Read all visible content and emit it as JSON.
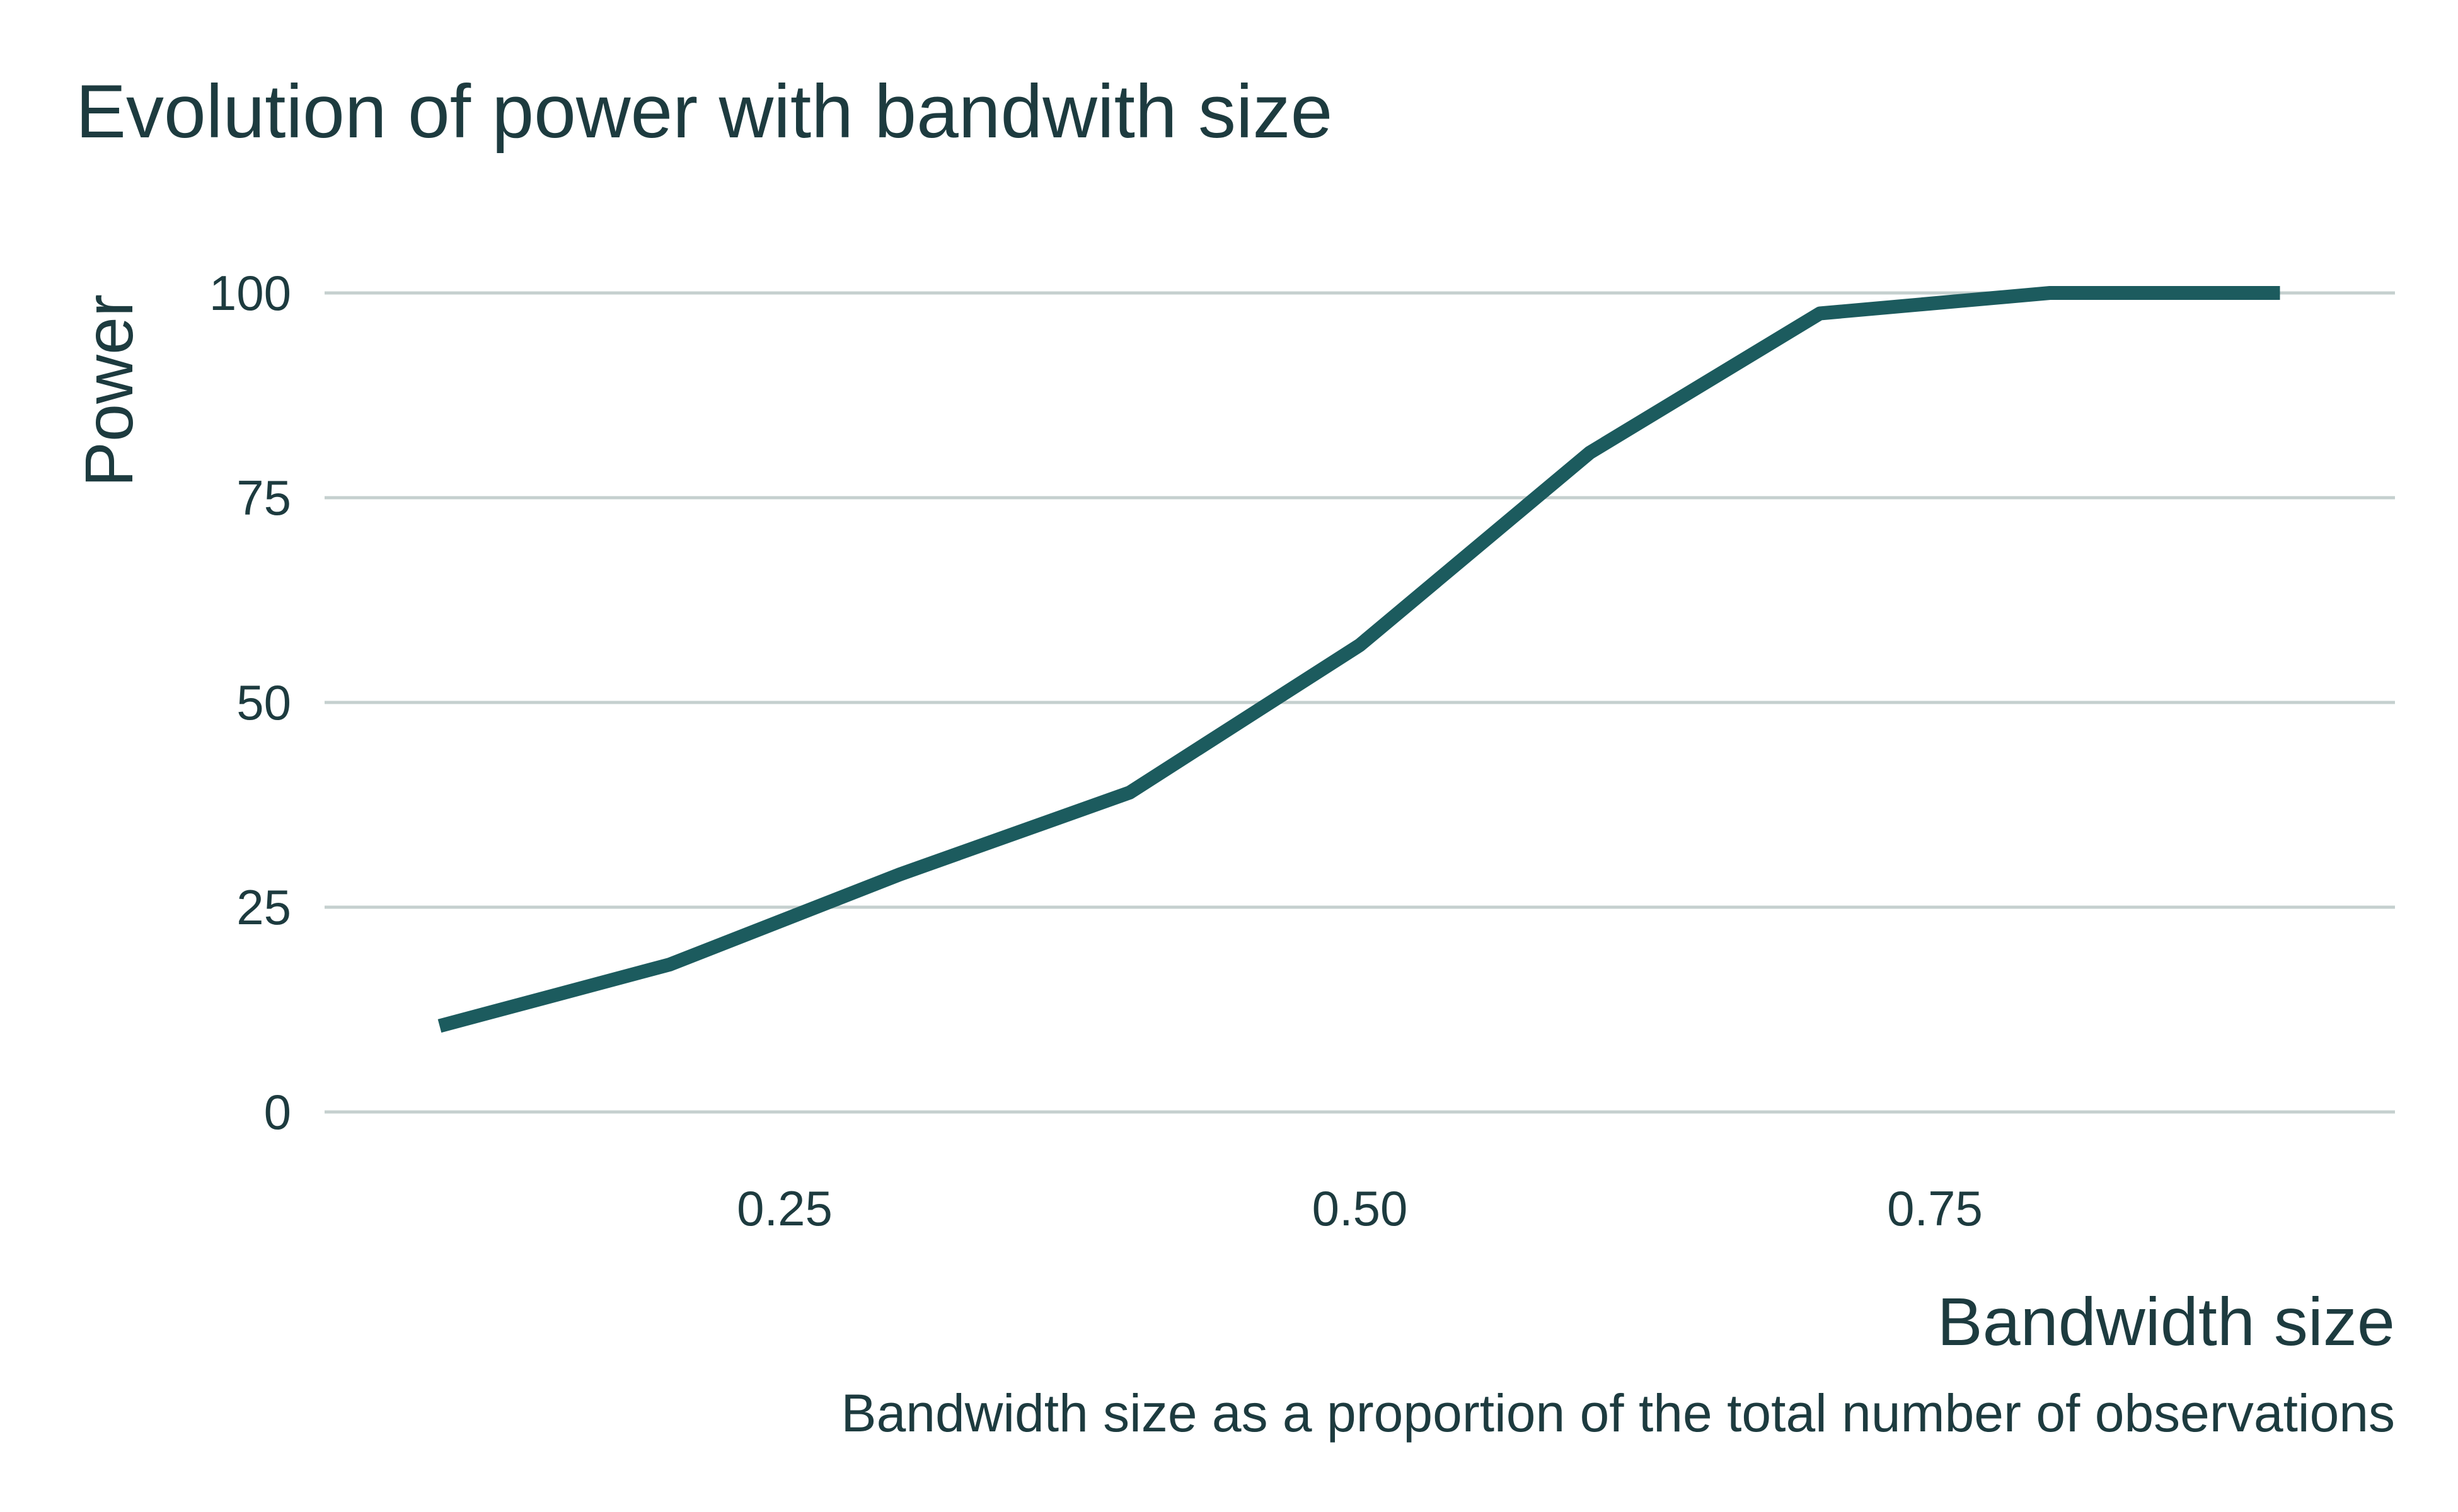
{
  "chart_data": {
    "type": "line",
    "title": "Evolution of power with bandwith size",
    "xlabel": "Bandwidth size",
    "ylabel": "Power",
    "caption": "Bandwidth size as a proportion of the total number of observations",
    "xlim": [
      0.05,
      0.95
    ],
    "ylim": [
      0,
      100
    ],
    "x_ticks": [
      0.25,
      0.5,
      0.75
    ],
    "x_tick_labels": [
      "0.25",
      "0.50",
      "0.75"
    ],
    "y_ticks": [
      0,
      25,
      50,
      75,
      100
    ],
    "y_tick_labels": [
      "0",
      "25",
      "50",
      "75",
      "100"
    ],
    "grid": "horizontal",
    "legend": "none",
    "series": [
      {
        "color": "#1c5b5e",
        "x": [
          0.1,
          0.2,
          0.3,
          0.4,
          0.5,
          0.6,
          0.7,
          0.8,
          0.9
        ],
        "values": [
          10.5,
          18,
          29,
          39,
          57,
          80.5,
          97.5,
          100,
          100
        ]
      }
    ]
  }
}
